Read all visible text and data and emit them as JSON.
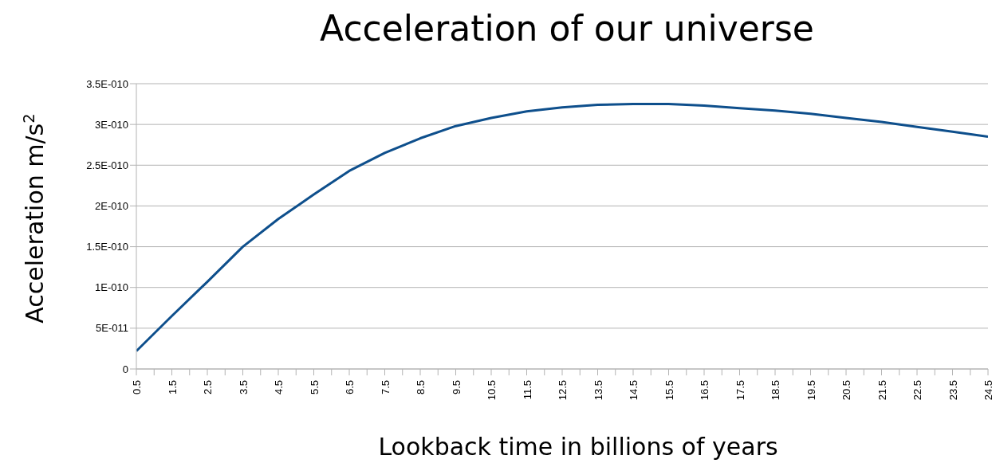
{
  "chart_data": {
    "type": "line",
    "title": "Acceleration of our universe",
    "xlabel": "Lookback time in billions of years",
    "ylabel": "Acceleration m/s$^{2}$",
    "x": [
      0.5,
      1.5,
      2.5,
      3.5,
      4.5,
      5.5,
      6.5,
      7.5,
      8.5,
      9.5,
      10.5,
      11.5,
      12.5,
      13.5,
      14.5,
      15.5,
      16.5,
      17.5,
      18.5,
      19.5,
      20.5,
      21.5,
      22.5,
      23.5,
      24.5
    ],
    "series": [
      {
        "color": "#0e4f8c",
        "values": [
          2.2e-11,
          6.5e-11,
          1.07e-10,
          1.5e-10,
          1.84e-10,
          2.14e-10,
          2.43e-10,
          2.65e-10,
          2.83e-10,
          2.98e-10,
          3.08e-10,
          3.16e-10,
          3.21e-10,
          3.24e-10,
          3.25e-10,
          3.25e-10,
          3.23e-10,
          3.2e-10,
          3.17e-10,
          3.13e-10,
          3.08e-10,
          3.03e-10,
          2.97e-10,
          2.91e-10,
          2.85e-10
        ]
      }
    ],
    "xlim": [
      0.5,
      24.5
    ],
    "xticks": [
      0.5,
      {
        "value": 1,
        "label": null
      },
      1.5,
      {
        "value": 2,
        "label": null
      },
      2.5,
      {
        "value": 3,
        "label": null
      },
      3.5,
      {
        "value": 4,
        "label": null
      },
      4.5,
      {
        "value": 5,
        "label": null
      },
      5.5,
      {
        "value": 6,
        "label": null
      },
      6.5,
      {
        "value": 7,
        "label": null
      },
      7.5,
      {
        "value": 8,
        "label": null
      },
      8.5,
      {
        "value": 9,
        "label": null
      },
      9.5,
      {
        "value": 10,
        "label": null
      },
      10.5,
      {
        "value": 11,
        "label": null
      },
      11.5,
      {
        "value": 12,
        "label": null
      },
      12.5,
      {
        "value": 13,
        "label": null
      },
      13.5,
      {
        "value": 14,
        "label": null
      },
      14.5,
      {
        "value": 15,
        "label": null
      },
      15.5,
      {
        "value": 16,
        "label": null
      },
      16.5,
      {
        "value": 17,
        "label": null
      },
      17.5,
      {
        "value": 18,
        "label": null
      },
      18.5,
      {
        "value": 19,
        "label": null
      },
      19.5,
      {
        "value": 20,
        "label": null
      },
      20.5,
      {
        "value": 21,
        "label": null
      },
      21.5,
      {
        "value": 22,
        "label": null
      },
      22.5,
      {
        "value": 23,
        "label": null
      },
      23.5,
      {
        "value": 24,
        "label": null
      },
      24.5
    ],
    "ylim": [
      0,
      3.5e-10
    ],
    "yticks": [
      0,
      {
        "value": 5e-11,
        "label": "5E-011"
      },
      {
        "value": 1e-10,
        "label": "1E-010"
      },
      {
        "value": 1.5e-10,
        "label": "1.5E-010"
      },
      {
        "value": 2e-10,
        "label": "2E-010"
      },
      {
        "value": 2.5e-10,
        "label": "2.5E-010"
      },
      {
        "value": 3e-10,
        "label": "3E-010"
      },
      {
        "value": 3.5e-10,
        "label": "3.5E-010"
      }
    ],
    "grid": "y",
    "legend": false,
    "marker": "none",
    "line_style": "solid"
  }
}
